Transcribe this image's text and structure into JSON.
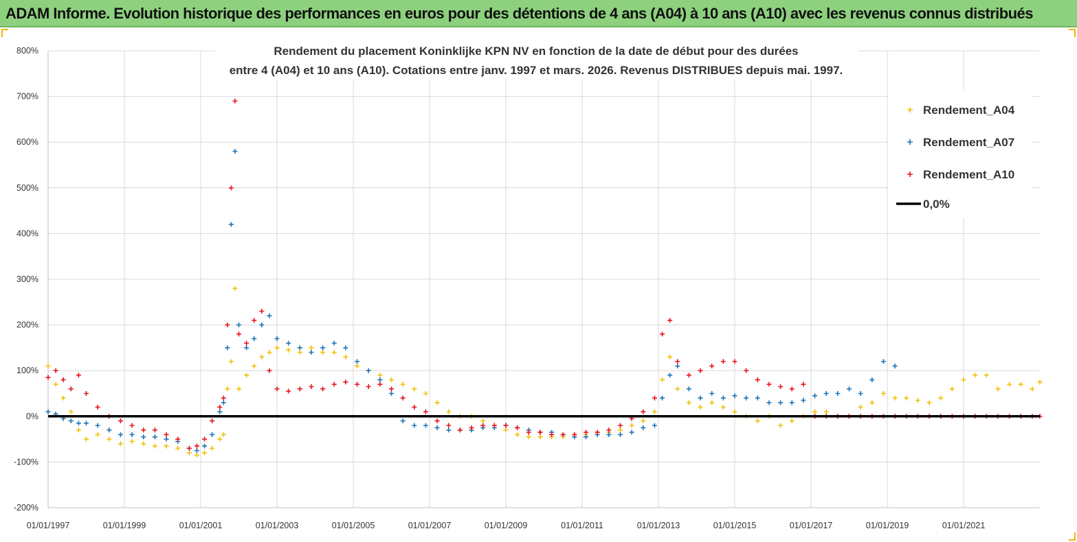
{
  "header": {
    "title": "ADAM Informe. Evolution historique des performances en euros pour des détentions de 4 ans (A04) à 10 ans (A10) avec les revenus connus distribués"
  },
  "chart_data": {
    "type": "scatter",
    "title": "",
    "subtitle_lines": [
      "Rendement du placement Koninklijke KPN NV en fonction de la date de début pour des durées",
      "entre 4 (A04) et 10 ans (A10). Cotations entre janv. 1997 et mars. 2026. Revenus DISTRIBUES depuis mai. 1997."
    ],
    "xlabel": "",
    "ylabel": "",
    "x_ticks": [
      "01/01/1997",
      "01/01/1999",
      "01/01/2001",
      "01/01/2003",
      "01/01/2005",
      "01/01/2007",
      "01/01/2009",
      "01/01/2011",
      "01/01/2013",
      "01/01/2015",
      "01/01/2017",
      "01/01/2019",
      "01/01/2021"
    ],
    "xlim": [
      1997.0,
      2023.0
    ],
    "y_ticks": [
      "-200%",
      "-100%",
      "0%",
      "100%",
      "200%",
      "300%",
      "400%",
      "500%",
      "600%",
      "700%",
      "800%"
    ],
    "ylim": [
      -200,
      800
    ],
    "grid": true,
    "legend_position": "top-right",
    "reference_line": {
      "name": "0,0%",
      "value": 0,
      "color": "#000000"
    },
    "series": [
      {
        "name": "Rendement_A04",
        "color": "#f2c10e",
        "x": [
          1997.0,
          1997.2,
          1997.4,
          1997.6,
          1997.8,
          1998.0,
          1998.3,
          1998.6,
          1998.9,
          1999.2,
          1999.5,
          1999.8,
          2000.1,
          2000.4,
          2000.7,
          2000.9,
          2001.1,
          2001.3,
          2001.5,
          2001.6,
          2001.7,
          2001.8,
          2001.9,
          2002.0,
          2002.2,
          2002.4,
          2002.6,
          2002.8,
          2003.0,
          2003.3,
          2003.6,
          2003.9,
          2004.2,
          2004.5,
          2004.8,
          2005.1,
          2005.4,
          2005.7,
          2006.0,
          2006.3,
          2006.6,
          2006.9,
          2007.2,
          2007.5,
          2007.8,
          2008.1,
          2008.4,
          2008.7,
          2009.0,
          2009.3,
          2009.6,
          2009.9,
          2010.2,
          2010.5,
          2010.8,
          2011.1,
          2011.4,
          2011.7,
          2012.0,
          2012.3,
          2012.6,
          2012.9,
          2013.1,
          2013.3,
          2013.5,
          2013.8,
          2014.1,
          2014.4,
          2014.7,
          2015.0,
          2015.3,
          2015.6,
          2015.9,
          2016.2,
          2016.5,
          2016.8,
          2017.1,
          2017.4,
          2017.7,
          2018.0,
          2018.3,
          2018.6,
          2018.9,
          2019.2,
          2019.5,
          2019.8,
          2020.1,
          2020.4,
          2020.7,
          2021.0,
          2021.3,
          2021.6,
          2021.9,
          2022.2,
          2022.5,
          2022.8,
          2023.0
        ],
        "y": [
          110,
          70,
          40,
          10,
          -30,
          -50,
          -40,
          -50,
          -60,
          -55,
          -60,
          -65,
          -65,
          -70,
          -80,
          -85,
          -80,
          -70,
          -50,
          -40,
          60,
          120,
          280,
          60,
          90,
          110,
          130,
          140,
          150,
          145,
          140,
          150,
          140,
          140,
          130,
          110,
          100,
          90,
          80,
          70,
          60,
          50,
          30,
          10,
          0,
          0,
          -10,
          -20,
          -30,
          -40,
          -45,
          -45,
          -45,
          -45,
          -40,
          -40,
          -35,
          -35,
          -30,
          -20,
          -10,
          10,
          80,
          130,
          60,
          30,
          20,
          30,
          20,
          10,
          0,
          -10,
          0,
          -20,
          -10,
          0,
          10,
          10,
          0,
          0,
          20,
          30,
          50,
          40,
          40,
          35,
          30,
          40,
          60,
          80,
          90,
          90,
          60,
          70,
          70,
          60,
          75
        ],
        "label_marker": "+"
      },
      {
        "name": "Rendement_A07",
        "color": "#1f75b8",
        "x": [
          1997.0,
          1997.2,
          1997.4,
          1997.6,
          1997.8,
          1998.0,
          1998.3,
          1998.6,
          1998.9,
          1999.2,
          1999.5,
          1999.8,
          2000.1,
          2000.4,
          2000.7,
          2000.9,
          2001.1,
          2001.3,
          2001.5,
          2001.6,
          2001.7,
          2001.8,
          2001.9,
          2002.0,
          2002.2,
          2002.4,
          2002.6,
          2002.8,
          2003.0,
          2003.3,
          2003.6,
          2003.9,
          2004.2,
          2004.5,
          2004.8,
          2005.1,
          2005.4,
          2005.7,
          2006.0,
          2006.3,
          2006.6,
          2006.9,
          2007.2,
          2007.5,
          2007.8,
          2008.1,
          2008.4,
          2008.7,
          2009.0,
          2009.3,
          2009.6,
          2009.9,
          2010.2,
          2010.5,
          2010.8,
          2011.1,
          2011.4,
          2011.7,
          2012.0,
          2012.3,
          2012.6,
          2012.9,
          2013.1,
          2013.3,
          2013.5,
          2013.8,
          2014.1,
          2014.4,
          2014.7,
          2015.0,
          2015.3,
          2015.6,
          2015.9,
          2016.2,
          2016.5,
          2016.8,
          2017.1,
          2017.4,
          2017.7,
          2018.0,
          2018.3,
          2018.6,
          2018.9,
          2019.2
        ],
        "y": [
          10,
          5,
          -5,
          -10,
          -15,
          -15,
          -20,
          -30,
          -40,
          -40,
          -45,
          -45,
          -50,
          -55,
          -70,
          -75,
          -65,
          -40,
          10,
          30,
          150,
          420,
          580,
          200,
          150,
          170,
          200,
          220,
          170,
          160,
          150,
          140,
          150,
          160,
          150,
          120,
          100,
          80,
          50,
          -10,
          -20,
          -20,
          -25,
          -30,
          -30,
          -30,
          -25,
          -25,
          -20,
          -25,
          -30,
          -35,
          -35,
          -40,
          -45,
          -45,
          -40,
          -40,
          -40,
          -35,
          -25,
          -20,
          40,
          90,
          110,
          60,
          40,
          50,
          40,
          45,
          40,
          40,
          30,
          30,
          30,
          35,
          45,
          50,
          50,
          60,
          50,
          80,
          120,
          110
        ],
        "label_marker": "+"
      },
      {
        "name": "Rendement_A10",
        "color": "#e8141c",
        "x": [
          1997.0,
          1997.2,
          1997.4,
          1997.6,
          1997.8,
          1998.0,
          1998.3,
          1998.6,
          1998.9,
          1999.2,
          1999.5,
          1999.8,
          2000.1,
          2000.4,
          2000.7,
          2000.9,
          2001.1,
          2001.3,
          2001.5,
          2001.6,
          2001.7,
          2001.8,
          2001.9,
          2002.0,
          2002.2,
          2002.4,
          2002.6,
          2002.8,
          2003.0,
          2003.3,
          2003.6,
          2003.9,
          2004.2,
          2004.5,
          2004.8,
          2005.1,
          2005.4,
          2005.7,
          2006.0,
          2006.3,
          2006.6,
          2006.9,
          2007.2,
          2007.5,
          2007.8,
          2008.1,
          2008.4,
          2008.7,
          2009.0,
          2009.3,
          2009.6,
          2009.9,
          2010.2,
          2010.5,
          2010.8,
          2011.1,
          2011.4,
          2011.7,
          2012.0,
          2012.3,
          2012.6,
          2012.9,
          2013.1,
          2013.3,
          2013.5,
          2013.8,
          2014.1,
          2014.4,
          2014.7,
          2015.0,
          2015.3,
          2015.6,
          2015.9,
          2016.2,
          2016.5,
          2016.8,
          2017.1,
          2017.4,
          2017.7,
          2018.0,
          2018.3,
          2018.6,
          2018.9,
          2019.2,
          2019.5,
          2019.8,
          2020.1,
          2020.4,
          2020.7,
          2021.0,
          2021.3,
          2021.6,
          2021.9,
          2022.2,
          2022.5,
          2022.8,
          2023.0
        ],
        "y": [
          85,
          100,
          80,
          60,
          90,
          50,
          20,
          0,
          -10,
          -20,
          -30,
          -30,
          -40,
          -50,
          -70,
          -65,
          -50,
          -10,
          20,
          40,
          200,
          500,
          690,
          180,
          160,
          210,
          230,
          100,
          60,
          55,
          60,
          65,
          60,
          70,
          75,
          70,
          65,
          70,
          60,
          40,
          20,
          10,
          -10,
          -20,
          -30,
          -25,
          -20,
          -20,
          -20,
          -25,
          -35,
          -35,
          -40,
          -40,
          -40,
          -35,
          -35,
          -30,
          -20,
          -5,
          10,
          40,
          180,
          210,
          120,
          90,
          100,
          110,
          120,
          120,
          100,
          80,
          70,
          65,
          60,
          70,
          0,
          0,
          0,
          0,
          0,
          0,
          0,
          0,
          0,
          0,
          0,
          0,
          0,
          0,
          0,
          0,
          0,
          0,
          0,
          0,
          0
        ],
        "label_marker": "+"
      }
    ]
  }
}
